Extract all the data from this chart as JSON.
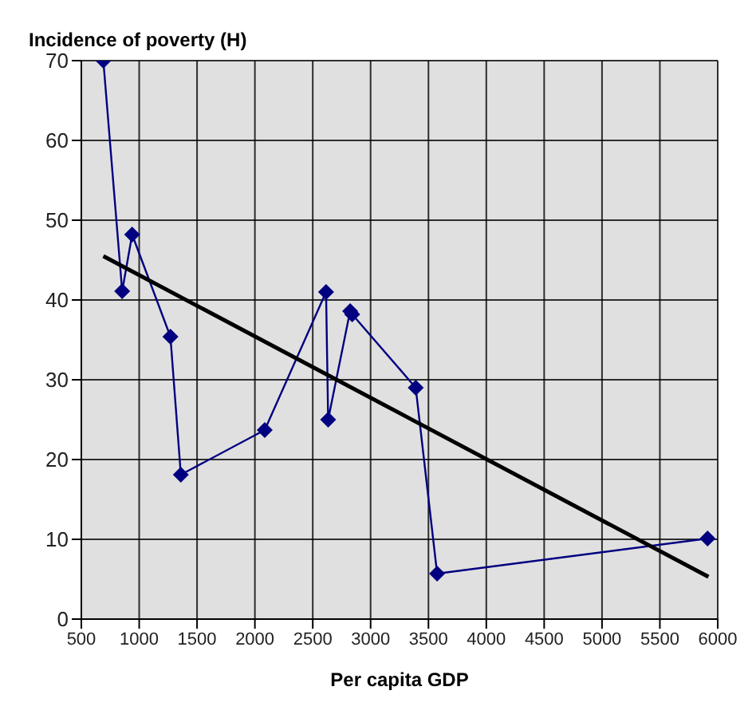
{
  "chart_data": {
    "type": "line",
    "ylabel": "Incidence of poverty (H)",
    "xlabel": "Per capita GDP",
    "xlim": [
      500,
      6000
    ],
    "xticks": [
      500,
      1000,
      1500,
      2000,
      2500,
      3000,
      3500,
      4000,
      4500,
      5000,
      5500,
      6000
    ],
    "ylim": [
      0,
      70
    ],
    "yticks": [
      0,
      10,
      20,
      30,
      40,
      50,
      60,
      70
    ],
    "grid": true,
    "series": [
      {
        "color": "#000080",
        "marker": "diamond",
        "x": [
          690,
          853,
          939,
          1270,
          1360,
          2085,
          2615,
          2633,
          2823,
          2841,
          3390,
          3575,
          5912
        ],
        "values": [
          70,
          41.1,
          48.2,
          35.4,
          18.1,
          23.7,
          41.0,
          25.0,
          38.6,
          38.2,
          29.0,
          5.7,
          10.1
        ]
      },
      {
        "color": "#000000",
        "marker": "none",
        "x": [
          690,
          5920
        ],
        "values": [
          45.5,
          5.3
        ]
      }
    ]
  }
}
